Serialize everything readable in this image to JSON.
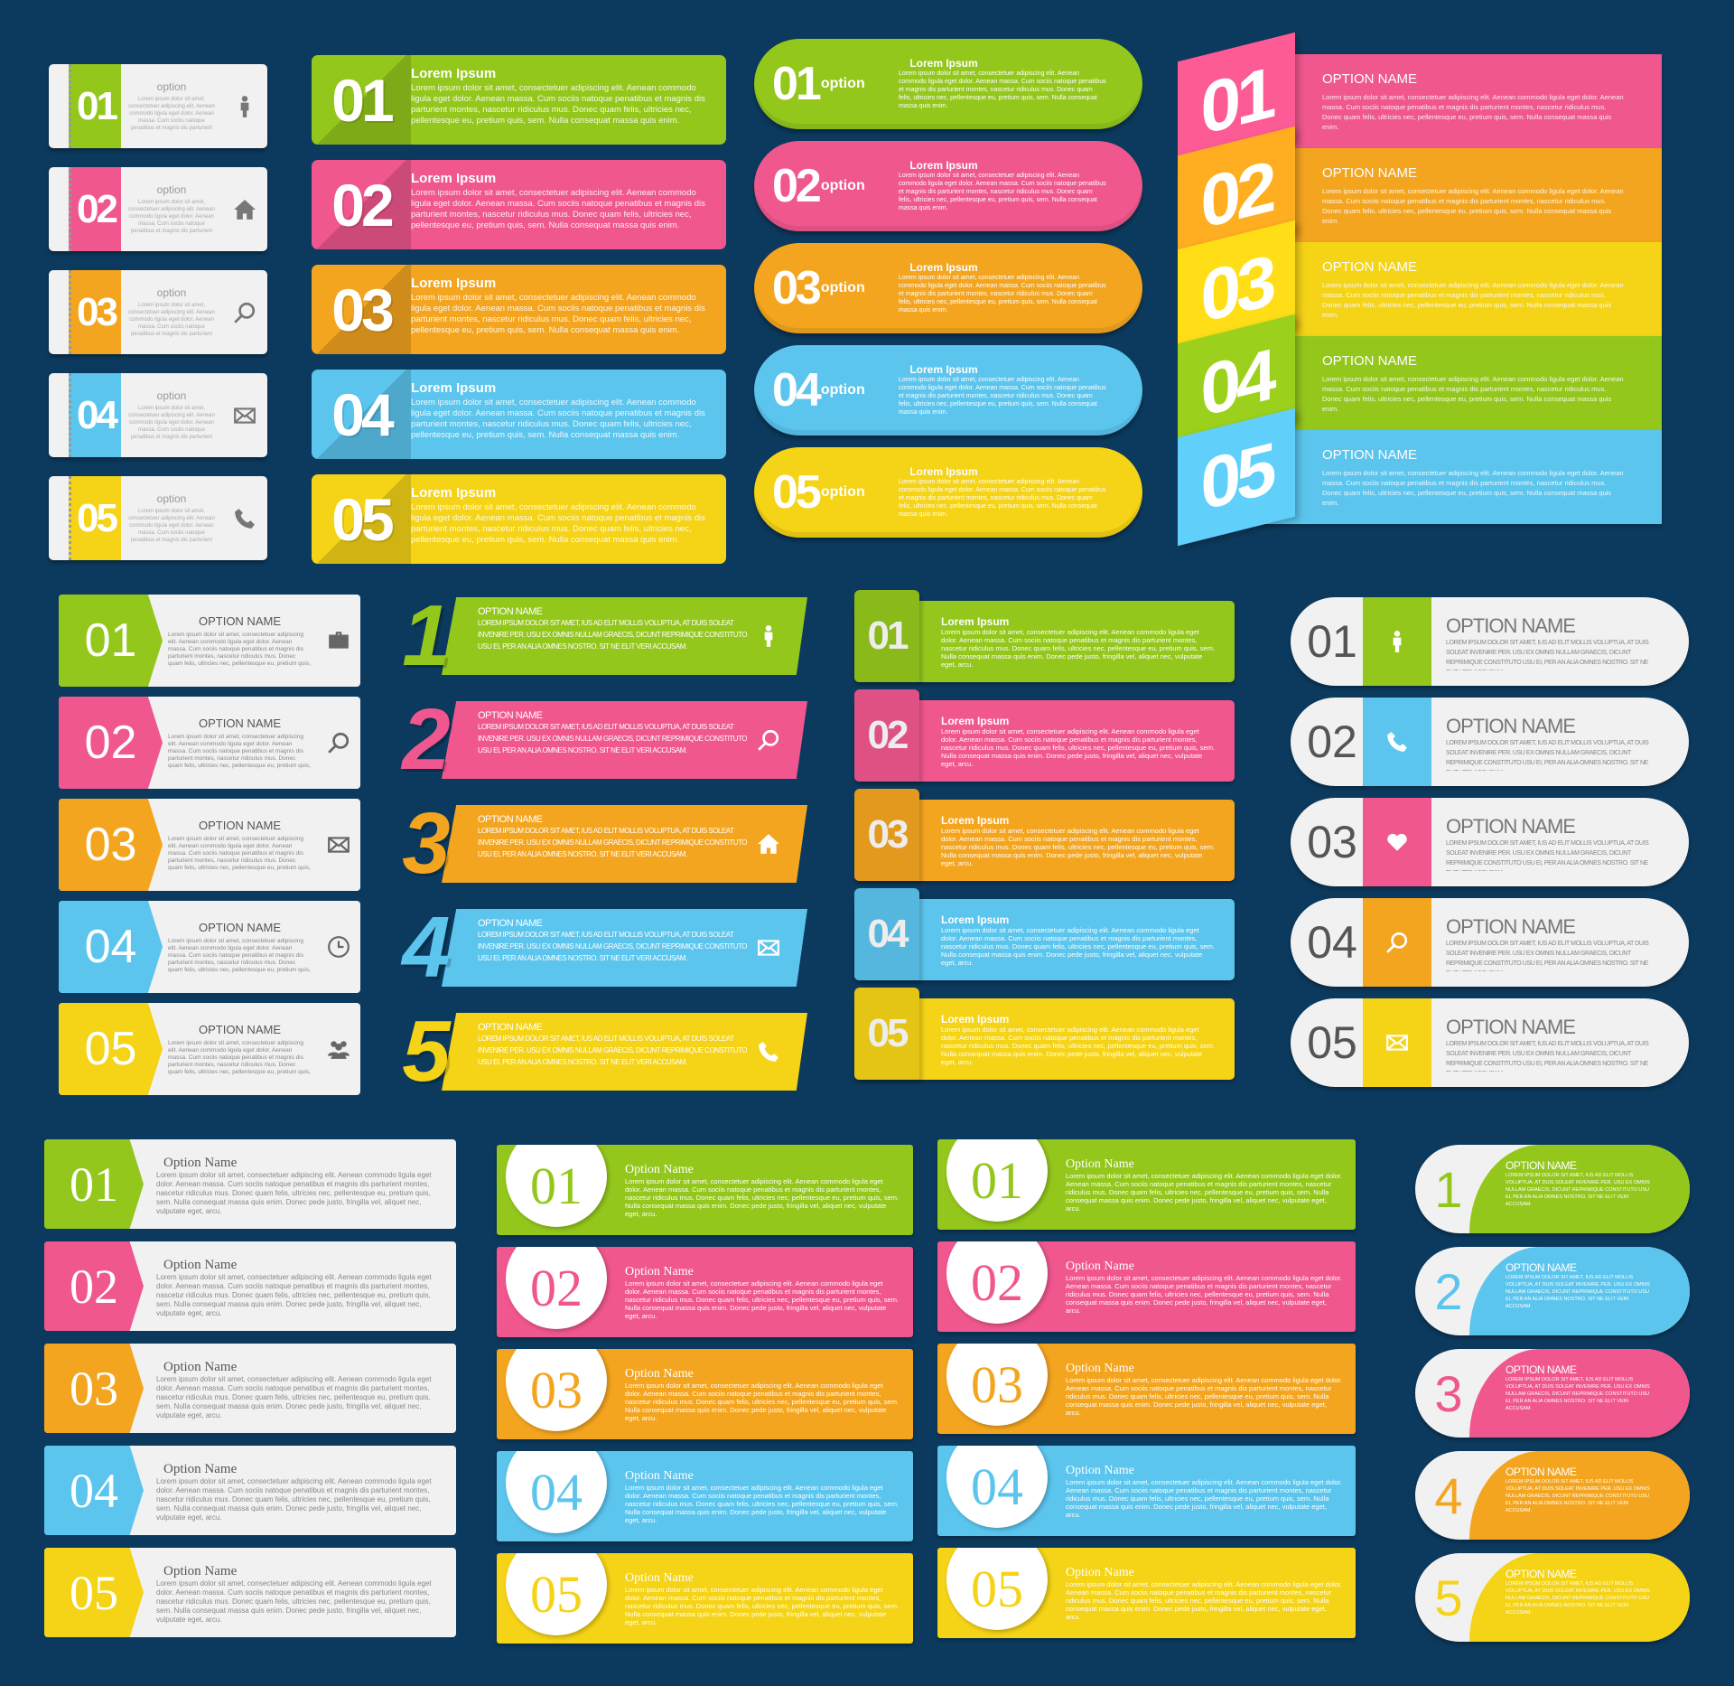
{
  "background": "#0c3a5e",
  "colors": {
    "green": "#94c71c",
    "pink": "#f0578e",
    "orange": "#f4a51f",
    "blue": "#5bc5ee",
    "yellow": "#f5d316"
  },
  "texts": {
    "lorem_title": "Lorem Ipsum",
    "lorem_body": "Lorem ipsum dolor sit amet, consectetuer adipiscing elit. Aenean commodo ligula eget dolor. Aenean massa. Cum sociis natoque penatibus et magnis dis parturient montes, nascetur ridiculus mus. Donec quam felis, ultricies nec, pellentesque eu, pretium quis, sem. Nulla consequat massa quis enim.",
    "lorem_body_long": "Lorem ipsum dolor sit amet, consectetuer adipiscing elit. Aenean commodo ligula eget dolor. Aenean massa. Cum sociis natoque penatibus et magnis dis parturient montes, nascetur ridiculus mus. Donec quam felis, ultricies nec, pellentesque eu, pretium quis, sem. Nulla consequat massa quis enim. Donec pede justo, fringilla vel, aliquet nec, vulputate eget, arcu.",
    "alt_body": "Lorem ipsum dolor sit amet, ius ad elit mollis voluptua, at duis soleat invenire per. Usu ex omnis nullam graecis, dicunt reprimique constituto usu ei, per an alia omnes nostro. Sit ne elit veri accusam.",
    "option": "option",
    "option_name_caps": "OPTION NAME",
    "option_name": "Option Name"
  },
  "panels": [
    {
      "style": "notebook",
      "title": "option",
      "body": "lorem_body",
      "items": [
        {
          "number": "01",
          "color": "green",
          "icon": "person"
        },
        {
          "number": "02",
          "color": "pink",
          "icon": "home"
        },
        {
          "number": "03",
          "color": "orange",
          "icon": "search"
        },
        {
          "number": "04",
          "color": "blue",
          "icon": "mail"
        },
        {
          "number": "05",
          "color": "yellow",
          "icon": "phone"
        }
      ]
    },
    {
      "style": "flat",
      "title": "lorem_title",
      "body": "lorem_body",
      "items": [
        {
          "number": "01",
          "color": "green"
        },
        {
          "number": "02",
          "color": "pink"
        },
        {
          "number": "03",
          "color": "orange"
        },
        {
          "number": "04",
          "color": "blue"
        },
        {
          "number": "05",
          "color": "yellow"
        }
      ]
    },
    {
      "style": "pill",
      "title": "lorem_title",
      "body": "lorem_body",
      "label": "option",
      "items": [
        {
          "number": "01",
          "color": "green"
        },
        {
          "number": "02",
          "color": "pink"
        },
        {
          "number": "03",
          "color": "orange"
        },
        {
          "number": "04",
          "color": "blue"
        },
        {
          "number": "05",
          "color": "yellow"
        }
      ]
    },
    {
      "style": "stack",
      "title": "option_name_caps",
      "body": "lorem_body",
      "items": [
        {
          "number": "01",
          "color": "pink"
        },
        {
          "number": "02",
          "color": "orange"
        },
        {
          "number": "03",
          "color": "yellow"
        },
        {
          "number": "04",
          "color": "green"
        },
        {
          "number": "05",
          "color": "blue"
        }
      ]
    },
    {
      "style": "arrow",
      "title": "option_name_caps",
      "body": "lorem_body",
      "items": [
        {
          "number": "01",
          "color": "green",
          "icon": "briefcase"
        },
        {
          "number": "02",
          "color": "pink",
          "icon": "search"
        },
        {
          "number": "03",
          "color": "orange",
          "icon": "mail"
        },
        {
          "number": "04",
          "color": "blue",
          "icon": "clock"
        },
        {
          "number": "05",
          "color": "yellow",
          "icon": "people"
        }
      ]
    },
    {
      "style": "slant",
      "title": "option_name_caps",
      "body": "alt_body",
      "items": [
        {
          "number": "1",
          "color": "green",
          "icon": "person"
        },
        {
          "number": "2",
          "color": "pink",
          "icon": "search"
        },
        {
          "number": "3",
          "color": "orange",
          "icon": "home"
        },
        {
          "number": "4",
          "color": "blue",
          "icon": "mail"
        },
        {
          "number": "5",
          "color": "yellow",
          "icon": "phone"
        }
      ]
    },
    {
      "style": "tab",
      "title": "lorem_title",
      "body": "lorem_body_long",
      "items": [
        {
          "number": "01",
          "color": "green"
        },
        {
          "number": "02",
          "color": "pink"
        },
        {
          "number": "03",
          "color": "orange"
        },
        {
          "number": "04",
          "color": "blue"
        },
        {
          "number": "05",
          "color": "yellow"
        }
      ]
    },
    {
      "style": "capsule",
      "title": "option_name_caps",
      "body": "alt_body",
      "items": [
        {
          "number": "01",
          "color": "green",
          "icon": "person"
        },
        {
          "number": "02",
          "color": "blue",
          "icon": "phone"
        },
        {
          "number": "03",
          "color": "pink",
          "icon": "heart"
        },
        {
          "number": "04",
          "color": "orange",
          "icon": "search"
        },
        {
          "number": "05",
          "color": "yellow",
          "icon": "mail"
        }
      ]
    },
    {
      "style": "arrowserif",
      "title": "option_name",
      "body": "lorem_body_long",
      "items": [
        {
          "number": "01",
          "color": "green"
        },
        {
          "number": "02",
          "color": "pink"
        },
        {
          "number": "03",
          "color": "orange"
        },
        {
          "number": "04",
          "color": "blue"
        },
        {
          "number": "05",
          "color": "yellow"
        }
      ]
    },
    {
      "style": "circle",
      "title": "option_name",
      "body": "lorem_body_long",
      "items": [
        {
          "number": "01",
          "color": "green"
        },
        {
          "number": "02",
          "color": "pink"
        },
        {
          "number": "03",
          "color": "orange"
        },
        {
          "number": "04",
          "color": "blue"
        },
        {
          "number": "05",
          "color": "yellow"
        }
      ]
    },
    {
      "style": "circle",
      "title": "option_name",
      "body": "lorem_body_long",
      "items": [
        {
          "number": "01",
          "color": "green"
        },
        {
          "number": "02",
          "color": "pink"
        },
        {
          "number": "03",
          "color": "orange"
        },
        {
          "number": "04",
          "color": "blue"
        },
        {
          "number": "05",
          "color": "yellow"
        }
      ]
    },
    {
      "style": "half",
      "title": "option_name_caps",
      "body": "alt_body",
      "items": [
        {
          "number": "1",
          "color": "green"
        },
        {
          "number": "2",
          "color": "blue"
        },
        {
          "number": "3",
          "color": "pink"
        },
        {
          "number": "4",
          "color": "orange"
        },
        {
          "number": "5",
          "color": "yellow"
        }
      ]
    }
  ]
}
